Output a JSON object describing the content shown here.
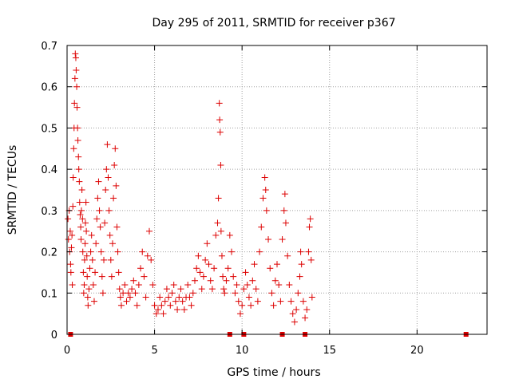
{
  "chart_data": {
    "type": "scatter",
    "title": "Day 295 of 2011, SRMTID for receiver p367",
    "xlabel": "GPS time / hours",
    "ylabel": "SRMTID / TECUs",
    "xlim": [
      0,
      24
    ],
    "ylim": [
      0,
      0.7
    ],
    "xticks": [
      0,
      5,
      10,
      15,
      20
    ],
    "xtick_labels": [
      "0",
      "5",
      "10",
      "15",
      "20"
    ],
    "yticks": [
      0,
      0.1,
      0.2,
      0.3,
      0.4,
      0.5,
      0.6,
      0.7
    ],
    "ytick_labels": [
      "0",
      "0.1",
      "0.2",
      "0.3",
      "0.4",
      "0.5",
      "0.6",
      "0.7"
    ],
    "grid": true,
    "marker": "plus",
    "series": [
      {
        "color": "#dd0000",
        "points": [
          [
            0.05,
            0.28
          ],
          [
            0.08,
            0.23
          ],
          [
            0.12,
            0.3
          ],
          [
            0.15,
            0.2
          ],
          [
            0.18,
            0.25
          ],
          [
            0.2,
            0.17
          ],
          [
            0.22,
            0.15
          ],
          [
            0.25,
            0.21
          ],
          [
            0.28,
            0.24
          ],
          [
            0.3,
            0.12
          ],
          [
            0.33,
            0.31
          ],
          [
            0.35,
            0.38
          ],
          [
            0.38,
            0.45
          ],
          [
            0.4,
            0.5
          ],
          [
            0.42,
            0.56
          ],
          [
            0.45,
            0.62
          ],
          [
            0.47,
            0.68
          ],
          [
            0.5,
            0.67
          ],
          [
            0.52,
            0.64
          ],
          [
            0.55,
            0.6
          ],
          [
            0.57,
            0.55
          ],
          [
            0.6,
            0.5
          ],
          [
            0.62,
            0.47
          ],
          [
            0.65,
            0.43
          ],
          [
            0.67,
            0.4
          ],
          [
            0.7,
            0.37
          ],
          [
            0.72,
            0.32
          ],
          [
            0.75,
            0.29
          ],
          [
            0.78,
            0.26
          ],
          [
            0.8,
            0.23
          ],
          [
            0.82,
            0.3
          ],
          [
            0.85,
            0.35
          ],
          [
            0.88,
            0.28
          ],
          [
            0.9,
            0.2
          ],
          [
            0.93,
            0.15
          ],
          [
            0.95,
            0.1
          ],
          [
            0.98,
            0.12
          ],
          [
            1.0,
            0.18
          ],
          [
            1.03,
            0.22
          ],
          [
            1.05,
            0.27
          ],
          [
            1.08,
            0.32
          ],
          [
            1.1,
            0.25
          ],
          [
            1.13,
            0.19
          ],
          [
            1.15,
            0.14
          ],
          [
            1.18,
            0.09
          ],
          [
            1.2,
            0.07
          ],
          [
            1.25,
            0.11
          ],
          [
            1.3,
            0.16
          ],
          [
            1.35,
            0.2
          ],
          [
            1.4,
            0.24
          ],
          [
            1.45,
            0.18
          ],
          [
            1.5,
            0.12
          ],
          [
            1.55,
            0.08
          ],
          [
            1.6,
            0.15
          ],
          [
            1.65,
            0.22
          ],
          [
            1.7,
            0.28
          ],
          [
            1.75,
            0.33
          ],
          [
            1.8,
            0.37
          ],
          [
            1.85,
            0.3
          ],
          [
            1.9,
            0.26
          ],
          [
            1.95,
            0.2
          ],
          [
            2.0,
            0.14
          ],
          [
            2.05,
            0.1
          ],
          [
            2.1,
            0.18
          ],
          [
            2.15,
            0.27
          ],
          [
            2.2,
            0.35
          ],
          [
            2.25,
            0.4
          ],
          [
            2.3,
            0.46
          ],
          [
            2.35,
            0.38
          ],
          [
            2.4,
            0.3
          ],
          [
            2.45,
            0.24
          ],
          [
            2.5,
            0.18
          ],
          [
            2.55,
            0.14
          ],
          [
            2.6,
            0.22
          ],
          [
            2.65,
            0.33
          ],
          [
            2.7,
            0.41
          ],
          [
            2.75,
            0.45
          ],
          [
            2.8,
            0.36
          ],
          [
            2.85,
            0.26
          ],
          [
            2.9,
            0.2
          ],
          [
            2.95,
            0.15
          ],
          [
            3.0,
            0.11
          ],
          [
            3.05,
            0.09
          ],
          [
            3.1,
            0.07
          ],
          [
            3.2,
            0.1
          ],
          [
            3.3,
            0.12
          ],
          [
            3.4,
            0.08
          ],
          [
            3.5,
            0.1
          ],
          [
            3.6,
            0.09
          ],
          [
            3.7,
            0.11
          ],
          [
            3.8,
            0.13
          ],
          [
            3.9,
            0.1
          ],
          [
            4.0,
            0.07
          ],
          [
            4.1,
            0.12
          ],
          [
            4.2,
            0.16
          ],
          [
            4.3,
            0.2
          ],
          [
            4.4,
            0.14
          ],
          [
            4.5,
            0.09
          ],
          [
            4.6,
            0.19
          ],
          [
            4.7,
            0.25
          ],
          [
            4.8,
            0.18
          ],
          [
            4.9,
            0.12
          ],
          [
            5.0,
            0.07
          ],
          [
            5.1,
            0.05
          ],
          [
            5.2,
            0.06
          ],
          [
            5.3,
            0.09
          ],
          [
            5.4,
            0.07
          ],
          [
            5.5,
            0.05
          ],
          [
            5.6,
            0.08
          ],
          [
            5.7,
            0.11
          ],
          [
            5.8,
            0.09
          ],
          [
            5.9,
            0.07
          ],
          [
            6.0,
            0.1
          ],
          [
            6.1,
            0.12
          ],
          [
            6.2,
            0.08
          ],
          [
            6.3,
            0.06
          ],
          [
            6.4,
            0.09
          ],
          [
            6.5,
            0.11
          ],
          [
            6.6,
            0.08
          ],
          [
            6.7,
            0.06
          ],
          [
            6.8,
            0.09
          ],
          [
            6.9,
            0.12
          ],
          [
            7.0,
            0.09
          ],
          [
            7.1,
            0.07
          ],
          [
            7.2,
            0.1
          ],
          [
            7.3,
            0.13
          ],
          [
            7.4,
            0.16
          ],
          [
            7.5,
            0.19
          ],
          [
            7.6,
            0.15
          ],
          [
            7.7,
            0.11
          ],
          [
            7.8,
            0.14
          ],
          [
            7.9,
            0.18
          ],
          [
            8.0,
            0.22
          ],
          [
            8.1,
            0.17
          ],
          [
            8.2,
            0.13
          ],
          [
            8.3,
            0.11
          ],
          [
            8.4,
            0.16
          ],
          [
            8.5,
            0.24
          ],
          [
            8.6,
            0.27
          ],
          [
            8.65,
            0.33
          ],
          [
            8.7,
            0.56
          ],
          [
            8.72,
            0.52
          ],
          [
            8.75,
            0.49
          ],
          [
            8.78,
            0.41
          ],
          [
            8.8,
            0.25
          ],
          [
            8.85,
            0.19
          ],
          [
            8.9,
            0.14
          ],
          [
            8.95,
            0.11
          ],
          [
            9.0,
            0.1
          ],
          [
            9.1,
            0.13
          ],
          [
            9.2,
            0.16
          ],
          [
            9.3,
            0.24
          ],
          [
            9.4,
            0.2
          ],
          [
            9.5,
            0.14
          ],
          [
            9.6,
            0.1
          ],
          [
            9.7,
            0.12
          ],
          [
            9.8,
            0.08
          ],
          [
            9.9,
            0.05
          ],
          [
            10.0,
            0.07
          ],
          [
            10.1,
            0.11
          ],
          [
            10.2,
            0.15
          ],
          [
            10.3,
            0.12
          ],
          [
            10.4,
            0.09
          ],
          [
            10.5,
            0.07
          ],
          [
            10.6,
            0.13
          ],
          [
            10.7,
            0.17
          ],
          [
            10.8,
            0.11
          ],
          [
            10.9,
            0.08
          ],
          [
            11.0,
            0.2
          ],
          [
            11.1,
            0.26
          ],
          [
            11.2,
            0.33
          ],
          [
            11.3,
            0.38
          ],
          [
            11.35,
            0.35
          ],
          [
            11.4,
            0.3
          ],
          [
            11.5,
            0.23
          ],
          [
            11.6,
            0.16
          ],
          [
            11.7,
            0.1
          ],
          [
            11.8,
            0.07
          ],
          [
            11.9,
            0.13
          ],
          [
            12.0,
            0.17
          ],
          [
            12.1,
            0.12
          ],
          [
            12.2,
            0.08
          ],
          [
            12.3,
            0.23
          ],
          [
            12.4,
            0.3
          ],
          [
            12.45,
            0.34
          ],
          [
            12.5,
            0.27
          ],
          [
            12.6,
            0.19
          ],
          [
            12.7,
            0.12
          ],
          [
            12.8,
            0.08
          ],
          [
            12.9,
            0.05
          ],
          [
            13.0,
            0.03
          ],
          [
            13.1,
            0.06
          ],
          [
            13.2,
            0.1
          ],
          [
            13.3,
            0.14
          ],
          [
            13.35,
            0.2
          ],
          [
            13.4,
            0.17
          ],
          [
            13.5,
            0.08
          ],
          [
            13.6,
            0.04
          ],
          [
            13.7,
            0.06
          ],
          [
            13.8,
            0.2
          ],
          [
            13.85,
            0.26
          ],
          [
            13.9,
            0.28
          ],
          [
            13.95,
            0.18
          ],
          [
            14.0,
            0.09
          ]
        ]
      },
      {
        "color": "#dd0000",
        "marker": "square",
        "points": [
          [
            0.2,
            0
          ],
          [
            9.3,
            0
          ],
          [
            10.1,
            0
          ],
          [
            12.3,
            0
          ],
          [
            13.6,
            0
          ],
          [
            22.8,
            0
          ]
        ]
      }
    ]
  }
}
